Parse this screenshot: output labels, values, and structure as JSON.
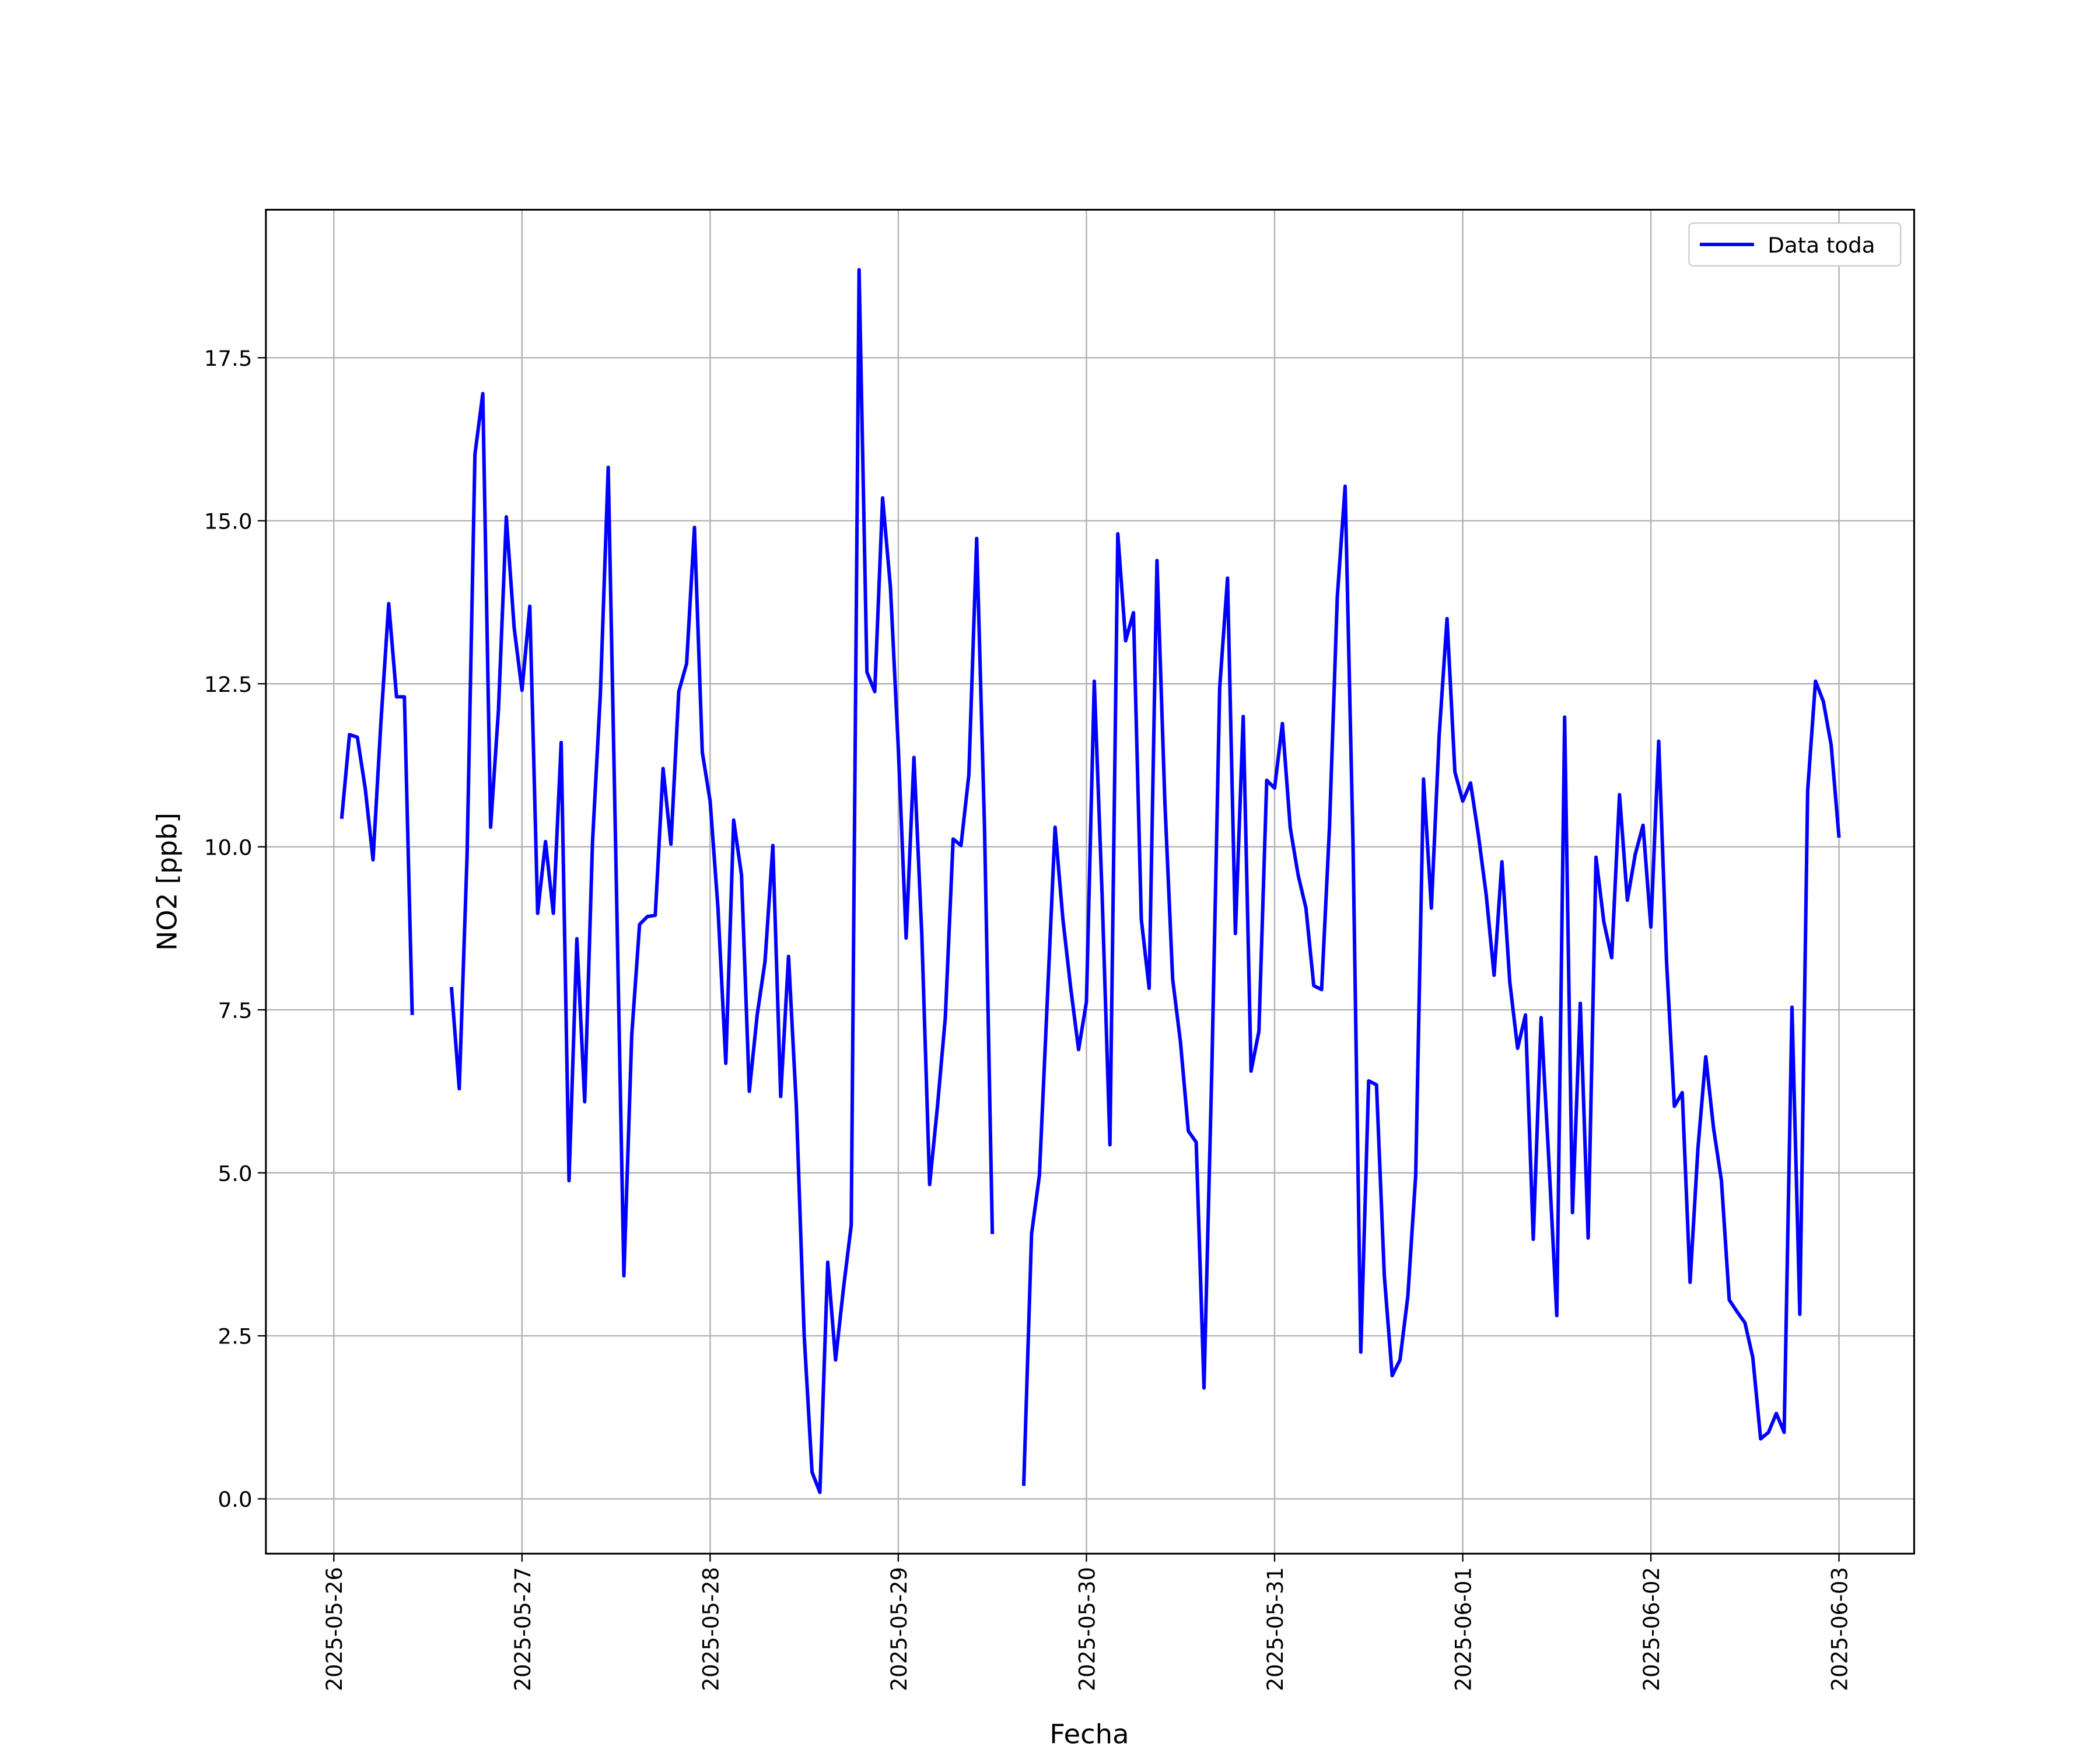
{
  "chart_data": {
    "type": "line",
    "x_label": "Fecha",
    "y_label": "NO2 [ppb]",
    "x": [
      "2025-05-26 01:00",
      "2025-05-26 02:00",
      "2025-05-26 03:00",
      "2025-05-26 04:00",
      "2025-05-26 05:00",
      "2025-05-26 06:00",
      "2025-05-26 07:00",
      "2025-05-26 08:00",
      "2025-05-26 09:00",
      "2025-05-26 10:00",
      "2025-05-26 11:00",
      "2025-05-26 12:00",
      "2025-05-26 13:00",
      "2025-05-26 14:00",
      "2025-05-26 15:00",
      "2025-05-26 16:00",
      "2025-05-26 17:00",
      "2025-05-26 18:00",
      "2025-05-26 19:00",
      "2025-05-26 20:00",
      "2025-05-26 21:00",
      "2025-05-26 22:00",
      "2025-05-26 23:00",
      "2025-05-27 00:00",
      "2025-05-27 01:00",
      "2025-05-27 02:00",
      "2025-05-27 03:00",
      "2025-05-27 04:00",
      "2025-05-27 05:00",
      "2025-05-27 06:00",
      "2025-05-27 07:00",
      "2025-05-27 08:00",
      "2025-05-27 09:00",
      "2025-05-27 10:00",
      "2025-05-27 11:00",
      "2025-05-27 12:00",
      "2025-05-27 13:00",
      "2025-05-27 14:00",
      "2025-05-27 15:00",
      "2025-05-27 16:00",
      "2025-05-27 17:00",
      "2025-05-27 18:00",
      "2025-05-27 19:00",
      "2025-05-27 20:00",
      "2025-05-27 21:00",
      "2025-05-27 22:00",
      "2025-05-27 23:00",
      "2025-05-28 00:00",
      "2025-05-28 01:00",
      "2025-05-28 02:00",
      "2025-05-28 03:00",
      "2025-05-28 04:00",
      "2025-05-28 05:00",
      "2025-05-28 06:00",
      "2025-05-28 07:00",
      "2025-05-28 08:00",
      "2025-05-28 09:00",
      "2025-05-28 10:00",
      "2025-05-28 11:00",
      "2025-05-28 12:00",
      "2025-05-28 13:00",
      "2025-05-28 14:00",
      "2025-05-28 15:00",
      "2025-05-28 16:00",
      "2025-05-28 17:00",
      "2025-05-28 18:00",
      "2025-05-28 19:00",
      "2025-05-28 20:00",
      "2025-05-28 21:00",
      "2025-05-28 22:00",
      "2025-05-28 23:00",
      "2025-05-29 00:00",
      "2025-05-29 01:00",
      "2025-05-29 02:00",
      "2025-05-29 03:00",
      "2025-05-29 04:00",
      "2025-05-29 05:00",
      "2025-05-29 06:00",
      "2025-05-29 07:00",
      "2025-05-29 08:00",
      "2025-05-29 09:00",
      "2025-05-29 10:00",
      "2025-05-29 11:00",
      "2025-05-29 12:00",
      "2025-05-29 13:00",
      "2025-05-29 14:00",
      "2025-05-29 15:00",
      "2025-05-29 16:00",
      "2025-05-29 17:00",
      "2025-05-29 18:00",
      "2025-05-29 19:00",
      "2025-05-29 20:00",
      "2025-05-29 21:00",
      "2025-05-29 22:00",
      "2025-05-29 23:00",
      "2025-05-30 00:00",
      "2025-05-30 01:00",
      "2025-05-30 02:00",
      "2025-05-30 03:00",
      "2025-05-30 04:00",
      "2025-05-30 05:00",
      "2025-05-30 06:00",
      "2025-05-30 07:00",
      "2025-05-30 08:00",
      "2025-05-30 09:00",
      "2025-05-30 10:00",
      "2025-05-30 11:00",
      "2025-05-30 12:00",
      "2025-05-30 13:00",
      "2025-05-30 14:00",
      "2025-05-30 15:00",
      "2025-05-30 16:00",
      "2025-05-30 17:00",
      "2025-05-30 18:00",
      "2025-05-30 19:00",
      "2025-05-30 20:00",
      "2025-05-30 21:00",
      "2025-05-30 22:00",
      "2025-05-30 23:00",
      "2025-05-31 00:00",
      "2025-05-31 01:00",
      "2025-05-31 02:00",
      "2025-05-31 03:00",
      "2025-05-31 04:00",
      "2025-05-31 05:00",
      "2025-05-31 06:00",
      "2025-05-31 07:00",
      "2025-05-31 08:00",
      "2025-05-31 09:00",
      "2025-05-31 10:00",
      "2025-05-31 11:00",
      "2025-05-31 12:00",
      "2025-05-31 13:00",
      "2025-05-31 14:00",
      "2025-05-31 15:00",
      "2025-05-31 16:00",
      "2025-05-31 17:00",
      "2025-05-31 18:00",
      "2025-05-31 19:00",
      "2025-05-31 20:00",
      "2025-05-31 21:00",
      "2025-05-31 22:00",
      "2025-05-31 23:00",
      "2025-06-01 00:00",
      "2025-06-01 01:00",
      "2025-06-01 02:00",
      "2025-06-01 03:00",
      "2025-06-01 04:00",
      "2025-06-01 05:00",
      "2025-06-01 06:00",
      "2025-06-01 07:00",
      "2025-06-01 08:00",
      "2025-06-01 09:00",
      "2025-06-01 10:00",
      "2025-06-01 11:00",
      "2025-06-01 12:00",
      "2025-06-01 13:00",
      "2025-06-01 14:00",
      "2025-06-01 15:00",
      "2025-06-01 16:00",
      "2025-06-01 17:00",
      "2025-06-01 18:00",
      "2025-06-01 19:00",
      "2025-06-01 20:00",
      "2025-06-01 21:00",
      "2025-06-01 22:00",
      "2025-06-01 23:00",
      "2025-06-02 00:00",
      "2025-06-02 01:00",
      "2025-06-02 02:00",
      "2025-06-02 03:00",
      "2025-06-02 04:00",
      "2025-06-02 05:00",
      "2025-06-02 06:00",
      "2025-06-02 07:00",
      "2025-06-02 08:00",
      "2025-06-02 09:00",
      "2025-06-02 10:00",
      "2025-06-02 11:00",
      "2025-06-02 12:00",
      "2025-06-02 13:00",
      "2025-06-02 14:00",
      "2025-06-02 15:00",
      "2025-06-02 16:00",
      "2025-06-02 17:00",
      "2025-06-02 18:00",
      "2025-06-02 19:00",
      "2025-06-02 20:00",
      "2025-06-02 21:00",
      "2025-06-02 22:00",
      "2025-06-02 23:00",
      "2025-06-03 00:00"
    ],
    "series": [
      {
        "name": "Data toda",
        "color": "#0000ff",
        "values": [
          10.43,
          11.72,
          11.68,
          10.9,
          9.8,
          11.9,
          13.73,
          12.3,
          12.3,
          7.42,
          null,
          null,
          null,
          null,
          7.85,
          6.29,
          9.88,
          16.02,
          16.95,
          10.3,
          12.1,
          15.06,
          13.36,
          12.4,
          13.69,
          8.98,
          10.08,
          8.98,
          11.6,
          4.88,
          8.59,
          6.09,
          10.08,
          12.34,
          15.82,
          9.67,
          3.42,
          7.11,
          8.81,
          8.93,
          8.95,
          11.2,
          10.04,
          12.38,
          12.81,
          14.9,
          11.45,
          10.7,
          9.06,
          6.68,
          10.41,
          9.57,
          6.25,
          7.42,
          8.24,
          10.02,
          6.17,
          8.32,
          6.02,
          2.5,
          0.41,
          0.1,
          3.63,
          2.13,
          3.22,
          4.2,
          18.85,
          12.68,
          12.38,
          15.35,
          13.98,
          11.52,
          8.6,
          11.37,
          8.65,
          4.82,
          6.02,
          7.38,
          10.12,
          10.02,
          11.1,
          14.73,
          10.29,
          4.06,
          null,
          null,
          null,
          0.2,
          4.06,
          4.96,
          7.62,
          10.3,
          8.89,
          7.83,
          6.89,
          7.62,
          12.54,
          9.26,
          5.43,
          14.8,
          13.16,
          13.59,
          8.89,
          7.83,
          14.39,
          10.7,
          7.97,
          7.0,
          5.64,
          5.47,
          1.7,
          6.6,
          12.44,
          14.12,
          8.67,
          12.0,
          6.56,
          7.17,
          11.02,
          10.9,
          11.89,
          10.29,
          9.57,
          9.06,
          7.87,
          7.81,
          10.29,
          13.83,
          15.53,
          10.08,
          2.25,
          6.41,
          6.35,
          3.42,
          1.89,
          2.13,
          3.11,
          4.96,
          11.04,
          9.06,
          11.72,
          13.5,
          11.15,
          10.7,
          10.98,
          10.18,
          9.26,
          8.03,
          9.77,
          7.93,
          6.91,
          7.42,
          3.98,
          7.38,
          5.16,
          2.81,
          11.99,
          4.39,
          7.6,
          4.0,
          9.84,
          8.85,
          8.3,
          10.8,
          9.18,
          9.88,
          10.33,
          8.77,
          11.62,
          8.24,
          6.02,
          6.23,
          3.32,
          5.37,
          6.78,
          5.68,
          4.88,
          3.05,
          2.87,
          2.7,
          2.17,
          0.92,
          1.02,
          1.31,
          1.02,
          7.54,
          2.83,
          10.86,
          12.54,
          12.23,
          11.56,
          10.14
        ]
      }
    ],
    "xlim": [
      "2025-05-25 15:20",
      "2025-06-03 09:35"
    ],
    "xticks": [
      "2025-05-26",
      "2025-05-27",
      "2025-05-28",
      "2025-05-29",
      "2025-05-30",
      "2025-05-31",
      "2025-06-01",
      "2025-06-02",
      "2025-06-03"
    ],
    "ylim": [
      -0.84,
      19.77
    ],
    "yticks": [
      {
        "value": 0,
        "label": "0.0"
      },
      2.5,
      {
        "value": 5,
        "label": "5.0"
      },
      7.5,
      {
        "value": 10,
        "label": "10.0"
      },
      12.5,
      {
        "value": 15,
        "label": "15.0"
      },
      17.5
    ],
    "grid": true,
    "legend": "upper right"
  }
}
